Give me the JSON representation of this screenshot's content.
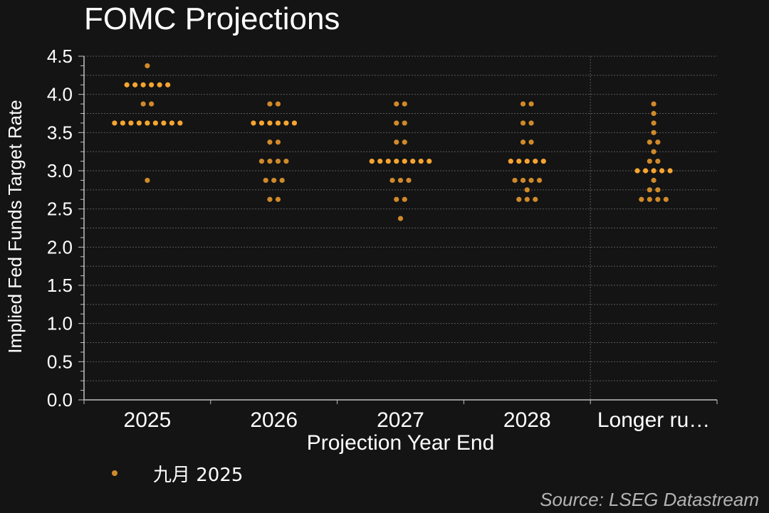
{
  "title": "FOMC Projections",
  "source": "Source: LSEG Datastream",
  "legend": {
    "label": "九月 2025",
    "marker": "dot-icon"
  },
  "colors": {
    "background": "#141414",
    "dot_normal": "#d08a2a",
    "dot_highlight": "#f7a531",
    "grid": "#5a5a5a",
    "axis": "#bfbfbf",
    "text": "#ffffff",
    "source": "#b4b4b4"
  },
  "chart_data": {
    "type": "scatter",
    "xlabel": "Projection Year End",
    "ylabel": "Implied Fed Funds Target Rate",
    "ylim": [
      0,
      4.5
    ],
    "yticks": [
      "0.0",
      "0.5",
      "1.0",
      "1.5",
      "2.0",
      "2.5",
      "3.0",
      "3.5",
      "4.0",
      "4.5"
    ],
    "categories": [
      "2025",
      "2026",
      "2027",
      "2028",
      "Longer ru…"
    ],
    "grid": true,
    "legend_position": "bottom-left",
    "series": [
      {
        "name": "九月 2025",
        "points": [
          {
            "category": "2025",
            "rates": [
              {
                "y": 4.375,
                "count": 1
              },
              {
                "y": 4.125,
                "count": 6
              },
              {
                "y": 3.875,
                "count": 2
              },
              {
                "y": 3.625,
                "count": 9
              },
              {
                "y": 2.875,
                "count": 1
              }
            ]
          },
          {
            "category": "2026",
            "rates": [
              {
                "y": 3.875,
                "count": 2
              },
              {
                "y": 3.625,
                "count": 6
              },
              {
                "y": 3.375,
                "count": 2
              },
              {
                "y": 3.125,
                "count": 4
              },
              {
                "y": 2.875,
                "count": 3
              },
              {
                "y": 2.625,
                "count": 2
              }
            ]
          },
          {
            "category": "2027",
            "rates": [
              {
                "y": 3.875,
                "count": 2
              },
              {
                "y": 3.625,
                "count": 2
              },
              {
                "y": 3.375,
                "count": 2
              },
              {
                "y": 3.125,
                "count": 8
              },
              {
                "y": 2.875,
                "count": 3
              },
              {
                "y": 2.625,
                "count": 2
              },
              {
                "y": 2.375,
                "count": 1
              }
            ]
          },
          {
            "category": "2028",
            "rates": [
              {
                "y": 3.875,
                "count": 2
              },
              {
                "y": 3.625,
                "count": 2
              },
              {
                "y": 3.375,
                "count": 2
              },
              {
                "y": 3.125,
                "count": 5
              },
              {
                "y": 2.875,
                "count": 4
              },
              {
                "y": 2.75,
                "count": 1
              },
              {
                "y": 2.625,
                "count": 3
              }
            ]
          },
          {
            "category": "Longer ru…",
            "rates": [
              {
                "y": 3.875,
                "count": 1
              },
              {
                "y": 3.75,
                "count": 1
              },
              {
                "y": 3.625,
                "count": 1
              },
              {
                "y": 3.5,
                "count": 1
              },
              {
                "y": 3.375,
                "count": 2
              },
              {
                "y": 3.25,
                "count": 1
              },
              {
                "y": 3.125,
                "count": 2
              },
              {
                "y": 3.0,
                "count": 5
              },
              {
                "y": 2.875,
                "count": 1
              },
              {
                "y": 2.75,
                "count": 2
              },
              {
                "y": 2.625,
                "count": 4
              }
            ]
          }
        ]
      }
    ]
  }
}
